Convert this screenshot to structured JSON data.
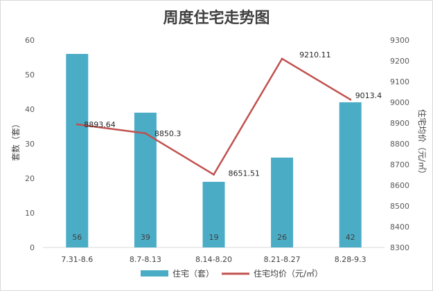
{
  "chart_data": {
    "type": "bar",
    "title": "周度住宅走势图",
    "categories": [
      "7.31-8.6",
      "8.7-8.13",
      "8.14-8.20",
      "8.21-8.27",
      "8.28-9.3"
    ],
    "series": [
      {
        "name": "住宅（套）",
        "type": "bar",
        "axis": "left",
        "color": "#4bacc6",
        "values": [
          56,
          39,
          19,
          26,
          42
        ]
      },
      {
        "name": "住宅均价（元/㎡）",
        "type": "line",
        "axis": "right",
        "color": "#c0504d",
        "values": [
          8893.64,
          8850.3,
          8651.51,
          9210.11,
          9013.4
        ]
      }
    ],
    "bar_labels": [
      "56",
      "39",
      "19",
      "26",
      "42"
    ],
    "line_labels": [
      "8893.64",
      "8850.3",
      "8651.51",
      "9210.11",
      "9013.4"
    ],
    "ylabel": "套数（套）",
    "ylabel_right": "住宅均价（元/㎡）",
    "ylim": [
      0,
      60
    ],
    "y_ticks": [
      0,
      10,
      20,
      30,
      40,
      50,
      60
    ],
    "ylim_right": [
      8300,
      9300
    ],
    "y_ticks_right": [
      8300,
      8400,
      8500,
      8600,
      8700,
      8800,
      8900,
      9000,
      9100,
      9200,
      9300
    ],
    "grid": false,
    "legend_position": "bottom"
  }
}
